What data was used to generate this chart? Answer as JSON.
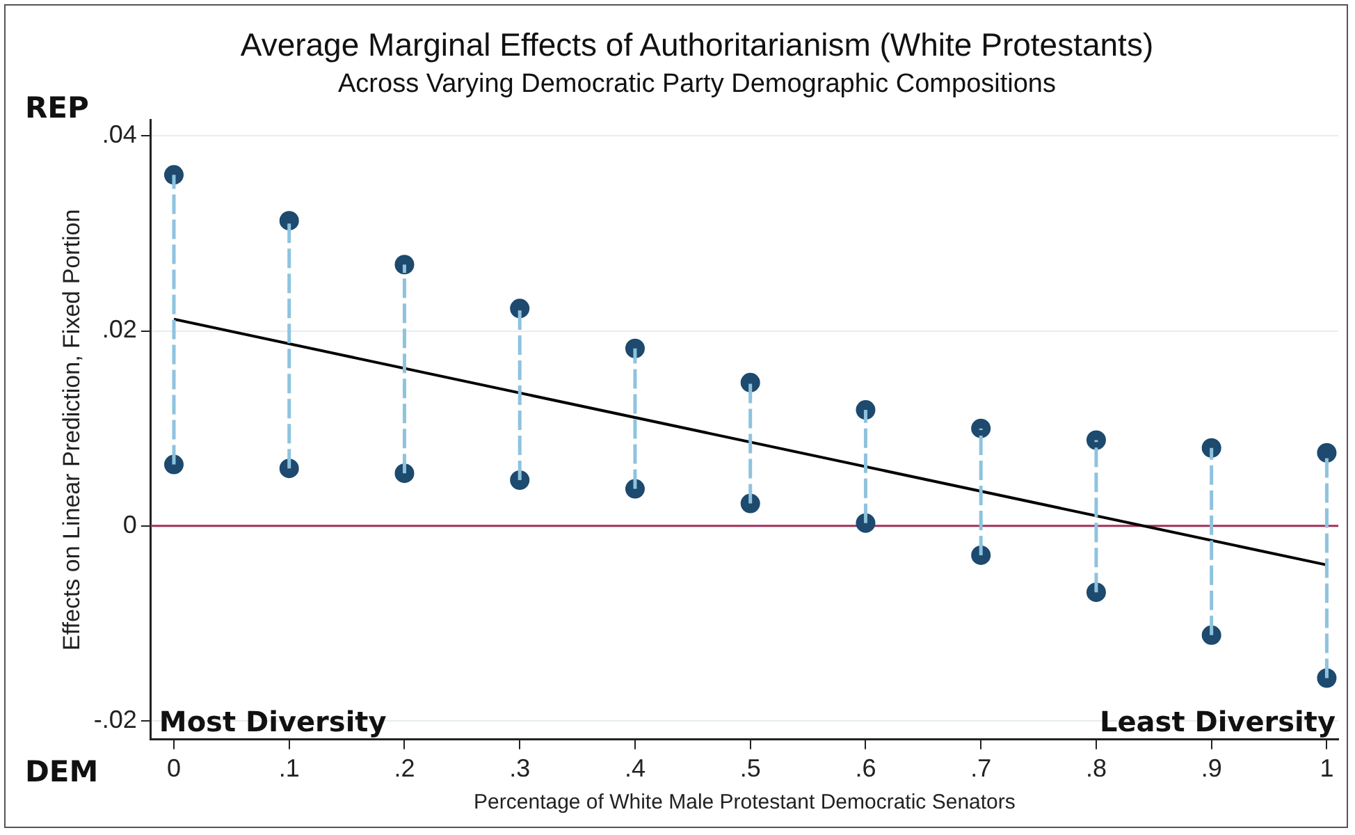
{
  "chart_data": {
    "type": "scatter",
    "title": "Average Marginal Effects of Authoritarianism (White Protestants)",
    "subtitle": "Across Varying Democratic Party Demographic Compositions",
    "xlabel": "Percentage of White Male Protestant Democratic Senators",
    "ylabel": "Effects on Linear Prediction, Fixed Portion",
    "x": [
      0,
      0.1,
      0.2,
      0.3,
      0.4,
      0.5,
      0.6,
      0.7,
      0.8,
      0.9,
      1
    ],
    "series": [
      {
        "type": "scatter",
        "color": "#1d4a6e",
        "values": [
          0.036,
          0.0313,
          0.0268,
          0.0223,
          0.0182,
          0.0147,
          0.0119,
          0.01,
          0.0088,
          0.008,
          0.0075
        ],
        "errors": [
          [
            0.0063,
            0.036
          ],
          [
            0.0059,
            0.0313
          ],
          [
            0.0054,
            0.0268
          ],
          [
            0.0047,
            0.0223
          ],
          [
            0.0038,
            0.0182
          ],
          [
            0.0023,
            0.0147
          ],
          [
            0.0003,
            0.0119
          ],
          [
            -0.003,
            0.01
          ],
          [
            -0.0068,
            0.0088
          ],
          [
            -0.0112,
            0.008
          ],
          [
            -0.0156,
            0.0075
          ]
        ]
      },
      {
        "type": "scatter",
        "color": "#1d4a6e",
        "values": [
          0.0063,
          0.0059,
          0.0054,
          0.0047,
          0.0038,
          0.0023,
          0.0003,
          -0.003,
          -0.0068,
          -0.0112,
          -0.0156
        ]
      },
      {
        "type": "line",
        "marker": "none",
        "color": "#000000",
        "x": [
          0,
          1
        ],
        "values": [
          0.0212,
          -0.004
        ]
      }
    ],
    "xlim": [
      -0.02,
      1.01
    ],
    "ylim": [
      -0.0219,
      0.0416
    ],
    "xticks": [
      0,
      {
        "value": 0.1,
        "label": ".1"
      },
      {
        "value": 0.2,
        "label": ".2"
      },
      {
        "value": 0.3,
        "label": ".3"
      },
      {
        "value": 0.4,
        "label": ".4"
      },
      {
        "value": 0.5,
        "label": ".5"
      },
      {
        "value": 0.6,
        "label": ".6"
      },
      {
        "value": 0.7,
        "label": ".7"
      },
      {
        "value": 0.8,
        "label": ".8"
      },
      {
        "value": 0.9,
        "label": ".9"
      },
      1
    ],
    "yticks": [
      {
        "value": -0.02,
        "label": "-.02"
      },
      0,
      {
        "value": 0.02,
        "label": ".02"
      },
      {
        "value": 0.04,
        "label": ".04"
      }
    ],
    "ref_lines": [
      {
        "axis": "y",
        "value": 0,
        "color": "#a0305a"
      }
    ],
    "annotations": [
      "REP",
      "DEM",
      "Most Diversity",
      "Least Diversity"
    ],
    "grid": "y",
    "legend": false,
    "marker": "circle"
  }
}
